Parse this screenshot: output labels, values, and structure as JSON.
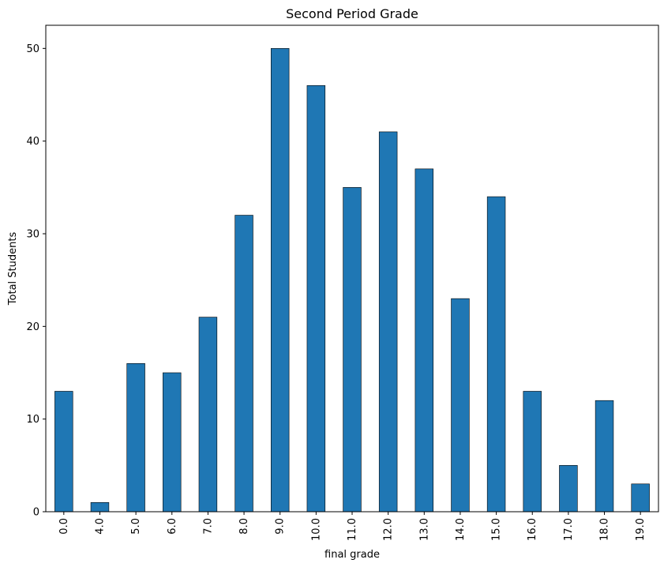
{
  "chart_data": {
    "type": "bar",
    "title": "Second Period Grade",
    "xlabel": "final grade",
    "ylabel": "Total Students",
    "categories": [
      "0.0",
      "4.0",
      "5.0",
      "6.0",
      "7.0",
      "8.0",
      "9.0",
      "10.0",
      "11.0",
      "12.0",
      "13.0",
      "14.0",
      "15.0",
      "16.0",
      "17.0",
      "18.0",
      "19.0"
    ],
    "values": [
      13,
      1,
      16,
      15,
      21,
      32,
      50,
      46,
      35,
      41,
      37,
      23,
      34,
      13,
      5,
      12,
      3
    ],
    "ylim": [
      0,
      52.5
    ],
    "yticks": [
      0,
      10,
      20,
      30,
      40,
      50
    ],
    "grid": false,
    "legend": "none",
    "bar_color": "#1f77b4",
    "edge_color": "#000000"
  }
}
